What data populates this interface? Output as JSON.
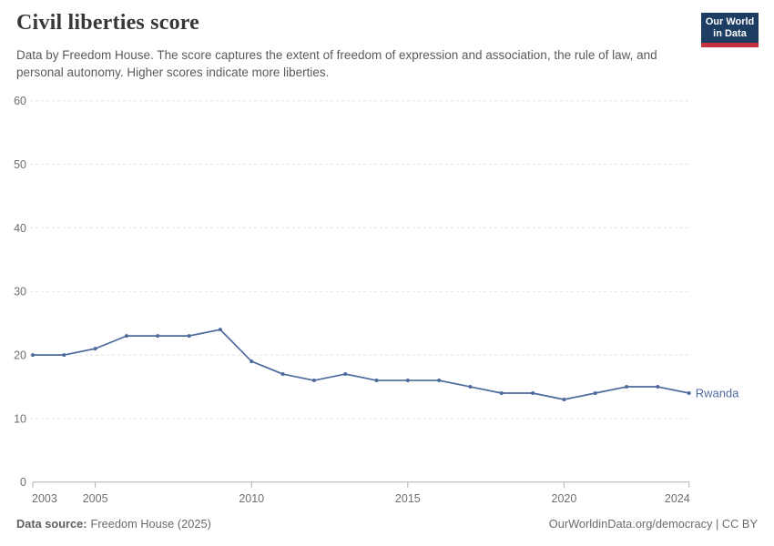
{
  "header": {
    "title": "Civil liberties score",
    "subtitle": "Data by Freedom House. The score captures the extent of freedom of expression and association, the rule of law, and personal autonomy. Higher scores indicate more liberties.",
    "logo": {
      "line1": "Our World",
      "line2": "in Data"
    }
  },
  "chart_data": {
    "type": "line",
    "title": "Civil liberties score",
    "x": [
      2003,
      2004,
      2005,
      2006,
      2007,
      2008,
      2009,
      2010,
      2011,
      2012,
      2013,
      2014,
      2015,
      2016,
      2017,
      2018,
      2019,
      2020,
      2021,
      2022,
      2023,
      2024
    ],
    "series": [
      {
        "name": "Rwanda",
        "color": "#4C6A9C",
        "values": [
          20,
          20,
          21,
          23,
          23,
          23,
          24,
          19,
          17,
          16,
          17,
          16,
          16,
          16,
          15,
          14,
          14,
          13,
          14,
          15,
          15,
          14
        ]
      }
    ],
    "x_ticks": [
      2003,
      2005,
      2010,
      2015,
      2020,
      2024
    ],
    "y_ticks": [
      0,
      10,
      20,
      30,
      40,
      50,
      60
    ],
    "xlim": [
      2003,
      2024
    ],
    "ylim": [
      0,
      60
    ],
    "grid": "horizontal-dashed",
    "legend": "end-of-line-label",
    "colors": {
      "grid": "#e4e4e4",
      "axis": "#aeaeae",
      "tick_label": "#6e6e6e"
    }
  },
  "footer": {
    "source_label": "Data source:",
    "source_value": "Freedom House (2025)",
    "credit": "OurWorldinData.org/democracy | CC BY"
  }
}
